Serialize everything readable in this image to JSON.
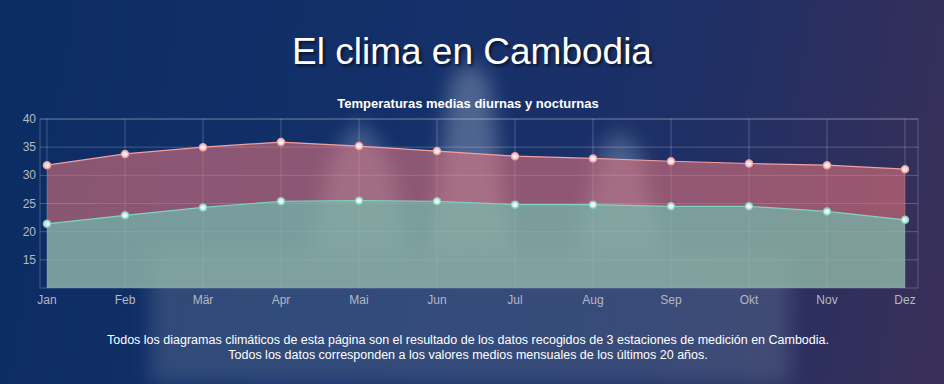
{
  "chart_data": {
    "type": "area",
    "title": "El clima en Cambodia",
    "subtitle": "Temperaturas medias diurnas y nocturnas",
    "annotations": [
      "Todos los diagramas climáticos de esta página son el resultado de los datos recogidos de 3 estaciones de medición en Cambodia.",
      "Todos los datos corresponden a los valores medios mensuales de los últimos 20 años."
    ],
    "categories": [
      "Jan",
      "Feb",
      "Mär",
      "Apr",
      "Mai",
      "Jun",
      "Jul",
      "Aug",
      "Sep",
      "Okt",
      "Nov",
      "Dez"
    ],
    "series": [
      {
        "color": "#f4a0a0",
        "marker": "circle",
        "values": [
          31.8,
          33.8,
          35.0,
          35.9,
          35.2,
          34.3,
          33.4,
          33.0,
          32.5,
          32.1,
          31.8,
          31.1
        ]
      },
      {
        "color": "#7fd3c3",
        "marker": "circle",
        "values": [
          21.4,
          22.9,
          24.3,
          25.4,
          25.5,
          25.4,
          24.8,
          24.8,
          24.5,
          24.5,
          23.6,
          22.1
        ]
      }
    ],
    "ylim": [
      10,
      40
    ],
    "yticks": [
      15,
      20,
      25,
      30,
      35,
      40
    ],
    "grid": true
  }
}
